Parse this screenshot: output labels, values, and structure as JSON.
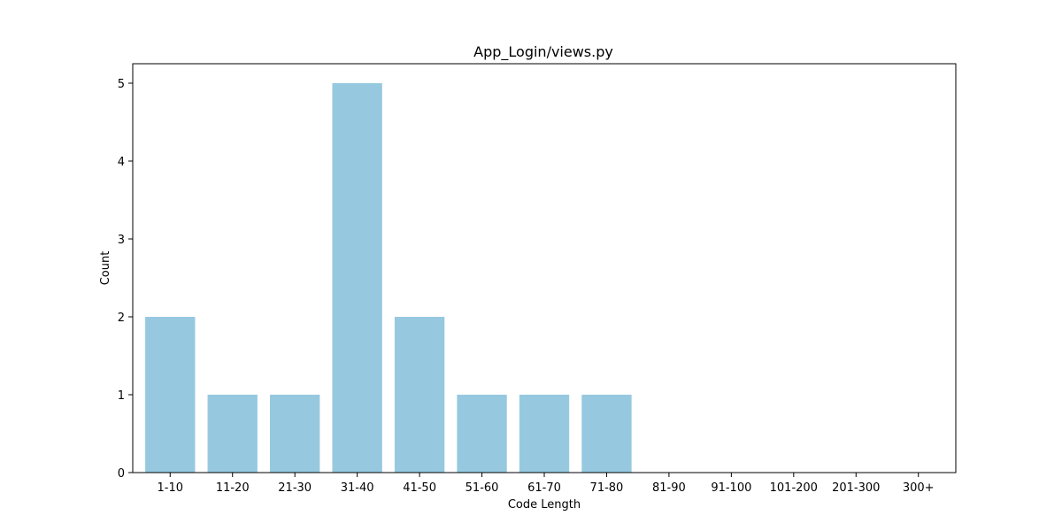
{
  "chart_data": {
    "type": "bar",
    "title": "App_Login/views.py",
    "xlabel": "Code Length",
    "ylabel": "Count",
    "categories": [
      "1-10",
      "11-20",
      "21-30",
      "31-40",
      "41-50",
      "51-60",
      "61-70",
      "71-80",
      "81-90",
      "91-100",
      "101-200",
      "201-300",
      "300+"
    ],
    "values": [
      2,
      1,
      1,
      5,
      2,
      1,
      1,
      1,
      0,
      0,
      0,
      0,
      0
    ],
    "ylim": [
      0,
      5.25
    ],
    "yticks": [
      0,
      1,
      2,
      3,
      4,
      5
    ],
    "grid": false,
    "bar_color": "#96c9df"
  }
}
